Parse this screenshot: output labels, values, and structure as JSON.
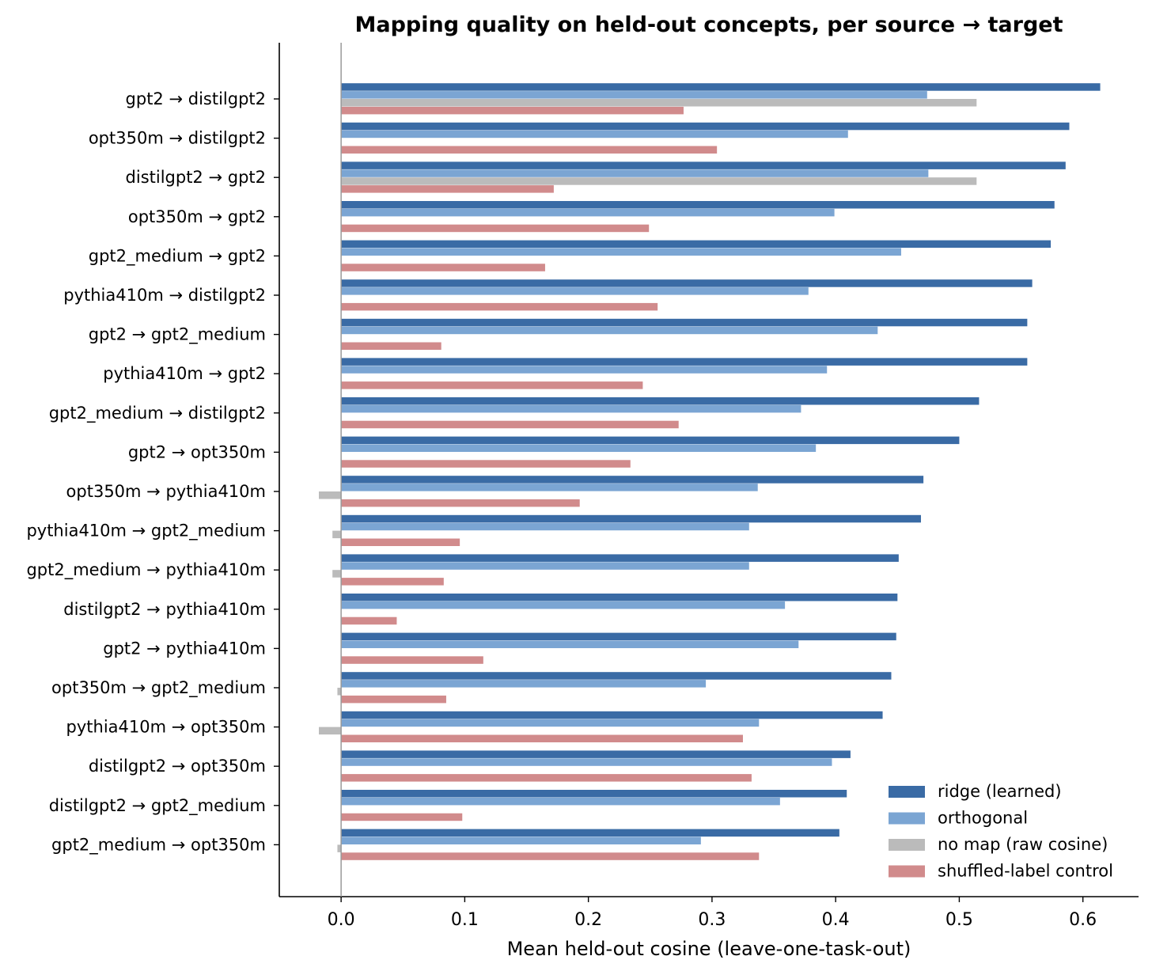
{
  "chart_data": {
    "type": "bar",
    "orientation": "horizontal",
    "title": "Mapping quality on held-out concepts, per source → target",
    "xlabel": "Mean held-out cosine (leave-one-task-out)",
    "ylabel": "",
    "xlim": [
      -0.05,
      0.645
    ],
    "xticks": [
      0.0,
      0.1,
      0.2,
      0.3,
      0.4,
      0.5,
      0.6
    ],
    "xtick_labels": [
      "0.0",
      "0.1",
      "0.2",
      "0.3",
      "0.4",
      "0.5",
      "0.6"
    ],
    "grid": false,
    "legend_position": "bottom-right",
    "categories": [
      "gpt2 → distilgpt2",
      "opt350m → distilgpt2",
      "distilgpt2 → gpt2",
      "opt350m → gpt2",
      "gpt2_medium → gpt2",
      "pythia410m → distilgpt2",
      "gpt2 → gpt2_medium",
      "pythia410m → gpt2",
      "gpt2_medium → distilgpt2",
      "gpt2 → opt350m",
      "opt350m → pythia410m",
      "pythia410m → gpt2_medium",
      "gpt2_medium → pythia410m",
      "distilgpt2 → pythia410m",
      "gpt2 → pythia410m",
      "opt350m → gpt2_medium",
      "pythia410m → opt350m",
      "distilgpt2 → opt350m",
      "distilgpt2 → gpt2_medium",
      "gpt2_medium → opt350m"
    ],
    "series": [
      {
        "name": "ridge (learned)",
        "color": "#3a6ba5",
        "values": [
          0.614,
          0.589,
          0.586,
          0.577,
          0.574,
          0.559,
          0.555,
          0.555,
          0.516,
          0.5,
          0.471,
          0.469,
          0.451,
          0.45,
          0.449,
          0.445,
          0.438,
          0.412,
          0.409,
          0.403
        ]
      },
      {
        "name": "orthogonal",
        "color": "#7ba5d3",
        "values": [
          0.474,
          0.41,
          0.475,
          0.399,
          0.453,
          0.378,
          0.434,
          0.393,
          0.372,
          0.384,
          0.337,
          0.33,
          0.33,
          0.359,
          0.37,
          0.295,
          0.338,
          0.397,
          0.355,
          0.291
        ]
      },
      {
        "name": "no map (raw cosine)",
        "color": "#bbbbbb",
        "values": [
          0.514,
          0.0,
          0.514,
          0.0,
          0.0,
          0.0,
          0.0,
          0.0,
          0.0,
          0.0,
          -0.018,
          -0.007,
          -0.007,
          0.0,
          0.0,
          -0.003,
          -0.018,
          0.0,
          0.0,
          -0.003
        ]
      },
      {
        "name": "shuffled-label control",
        "color": "#d18b8c",
        "values": [
          0.277,
          0.304,
          0.172,
          0.249,
          0.165,
          0.256,
          0.081,
          0.244,
          0.273,
          0.234,
          0.193,
          0.096,
          0.083,
          0.045,
          0.115,
          0.085,
          0.325,
          0.332,
          0.098,
          0.338
        ]
      }
    ]
  }
}
